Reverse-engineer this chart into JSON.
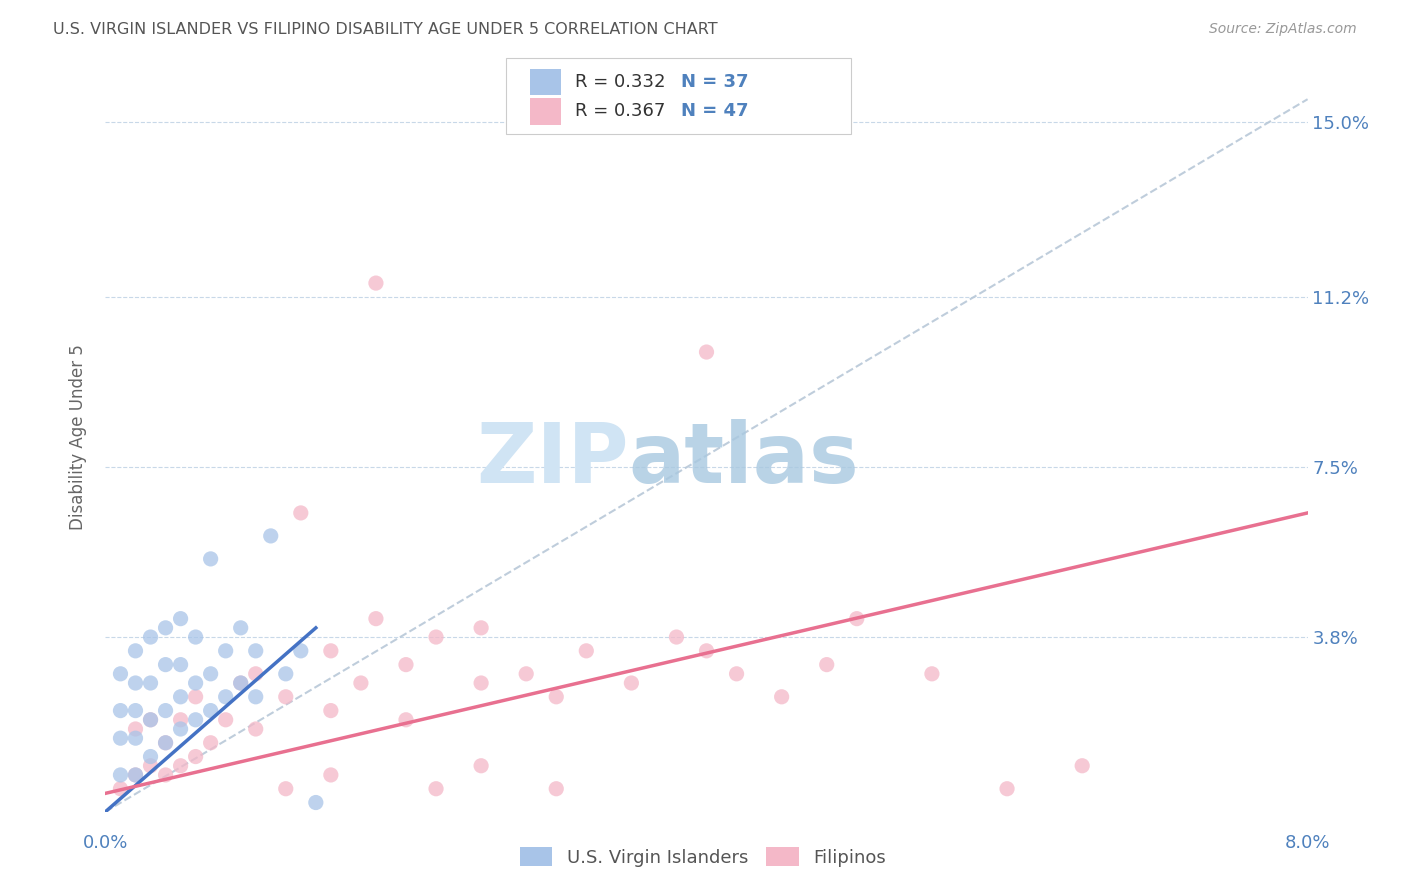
{
  "title": "U.S. VIRGIN ISLANDER VS FILIPINO DISABILITY AGE UNDER 5 CORRELATION CHART",
  "source": "Source: ZipAtlas.com",
  "ylabel": "Disability Age Under 5",
  "ytick_labels": [
    "3.8%",
    "7.5%",
    "11.2%",
    "15.0%"
  ],
  "ytick_values": [
    0.038,
    0.075,
    0.112,
    0.15
  ],
  "xlim": [
    0.0,
    0.08
  ],
  "ylim": [
    0.0,
    0.163
  ],
  "legend_label1": "U.S. Virgin Islanders",
  "legend_label2": "Filipinos",
  "blue_color": "#a8c4e8",
  "pink_color": "#f4b8c8",
  "blue_line_color": "#4472c4",
  "pink_line_color": "#e87090",
  "gray_dashed_color": "#b8c8d8",
  "title_color": "#555555",
  "axis_label_color": "#4f81bd",
  "background_color": "#ffffff",
  "blue_x": [
    0.001,
    0.001,
    0.001,
    0.001,
    0.002,
    0.002,
    0.002,
    0.002,
    0.002,
    0.003,
    0.003,
    0.003,
    0.003,
    0.004,
    0.004,
    0.004,
    0.004,
    0.005,
    0.005,
    0.005,
    0.005,
    0.006,
    0.006,
    0.006,
    0.007,
    0.007,
    0.007,
    0.008,
    0.008,
    0.009,
    0.009,
    0.01,
    0.01,
    0.011,
    0.012,
    0.013,
    0.014
  ],
  "blue_y": [
    0.008,
    0.016,
    0.022,
    0.03,
    0.008,
    0.016,
    0.022,
    0.028,
    0.035,
    0.012,
    0.02,
    0.028,
    0.038,
    0.015,
    0.022,
    0.032,
    0.04,
    0.018,
    0.025,
    0.032,
    0.042,
    0.02,
    0.028,
    0.038,
    0.022,
    0.03,
    0.055,
    0.025,
    0.035,
    0.028,
    0.04,
    0.025,
    0.035,
    0.06,
    0.03,
    0.035,
    0.002
  ],
  "pink_x": [
    0.001,
    0.002,
    0.002,
    0.003,
    0.003,
    0.004,
    0.004,
    0.005,
    0.005,
    0.006,
    0.006,
    0.007,
    0.008,
    0.009,
    0.01,
    0.01,
    0.012,
    0.013,
    0.015,
    0.015,
    0.017,
    0.018,
    0.02,
    0.02,
    0.022,
    0.025,
    0.025,
    0.028,
    0.03,
    0.032,
    0.035,
    0.038,
    0.04,
    0.042,
    0.045,
    0.048,
    0.05,
    0.055,
    0.06,
    0.065,
    0.04,
    0.018,
    0.022,
    0.03,
    0.012,
    0.015,
    0.025
  ],
  "pink_y": [
    0.005,
    0.008,
    0.018,
    0.01,
    0.02,
    0.008,
    0.015,
    0.01,
    0.02,
    0.012,
    0.025,
    0.015,
    0.02,
    0.028,
    0.018,
    0.03,
    0.025,
    0.065,
    0.022,
    0.035,
    0.028,
    0.042,
    0.02,
    0.032,
    0.038,
    0.028,
    0.04,
    0.03,
    0.025,
    0.035,
    0.028,
    0.038,
    0.035,
    0.03,
    0.025,
    0.032,
    0.042,
    0.03,
    0.005,
    0.01,
    0.1,
    0.115,
    0.005,
    0.005,
    0.005,
    0.008,
    0.01
  ],
  "blue_trendline": [
    0.0,
    0.014,
    0.0,
    0.04
  ],
  "pink_trendline": [
    0.0,
    0.08,
    0.004,
    0.065
  ],
  "gray_trendline": [
    0.0,
    0.08,
    0.0,
    0.155
  ]
}
